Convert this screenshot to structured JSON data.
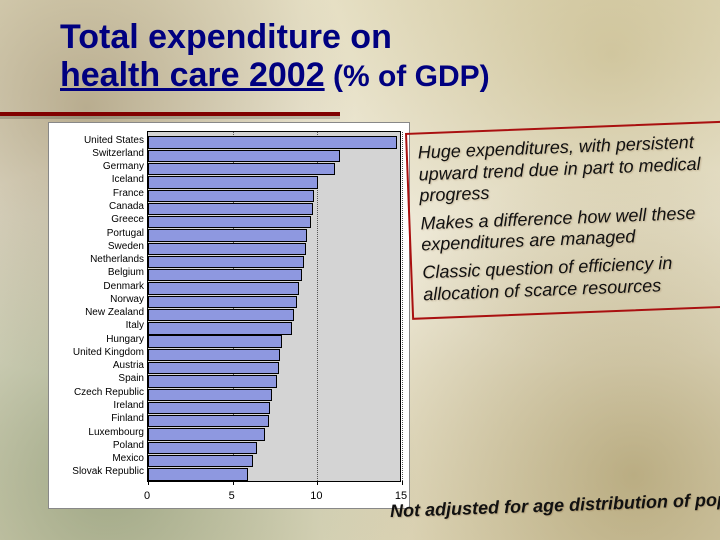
{
  "title_line1": "Total expenditure on",
  "title_line2": "health care 2002",
  "title_sub": " (% of GDP)",
  "callout": {
    "p1": "Huge expenditures, with persistent upward trend due in part to medical progress",
    "p2": "Makes a difference how well these expenditures are managed",
    "p3": "Classic question of efficiency in allocation of scarce resources"
  },
  "footnote": "Not adjusted for age distribution of popu",
  "chart": {
    "type": "bar-horizontal",
    "xmin": 0,
    "xmax": 15,
    "xticks": [
      0,
      5,
      10,
      15
    ],
    "bar_color": "#8e98e0",
    "plot_bg": "#d4d4d4",
    "grid_color": "#555555",
    "categories": [
      "United States",
      "Switzerland",
      "Germany",
      "Iceland",
      "France",
      "Canada",
      "Greece",
      "Portugal",
      "Sweden",
      "Netherlands",
      "Belgium",
      "Denmark",
      "Norway",
      "New Zealand",
      "Italy",
      "Hungary",
      "United Kingdom",
      "Austria",
      "Spain",
      "Czech Republic",
      "Ireland",
      "Finland",
      "Luxembourg",
      "Poland",
      "Mexico",
      "Slovak Republic"
    ],
    "values": [
      14.6,
      11.2,
      10.9,
      9.9,
      9.7,
      9.6,
      9.5,
      9.3,
      9.2,
      9.1,
      9.0,
      8.8,
      8.7,
      8.5,
      8.4,
      7.8,
      7.7,
      7.6,
      7.5,
      7.2,
      7.1,
      7.0,
      6.8,
      6.3,
      6.1,
      5.8
    ]
  }
}
